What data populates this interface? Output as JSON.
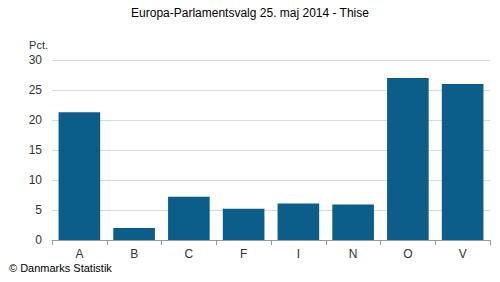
{
  "chart_data": {
    "type": "bar",
    "title": "Europa-Parlamentsvalg 25. maj 2014 - Thise",
    "ylabel": "Pct.",
    "source": "© Danmarks Statistik",
    "categories": [
      "A",
      "B",
      "C",
      "F",
      "I",
      "N",
      "O",
      "V"
    ],
    "values": [
      21.3,
      2.0,
      7.2,
      5.2,
      6.1,
      5.9,
      27.0,
      26.0
    ],
    "color": "#0b5e8a",
    "ylim": [
      0,
      30
    ],
    "yticks": [
      0,
      5,
      10,
      15,
      20,
      25,
      30
    ],
    "grid": true
  }
}
